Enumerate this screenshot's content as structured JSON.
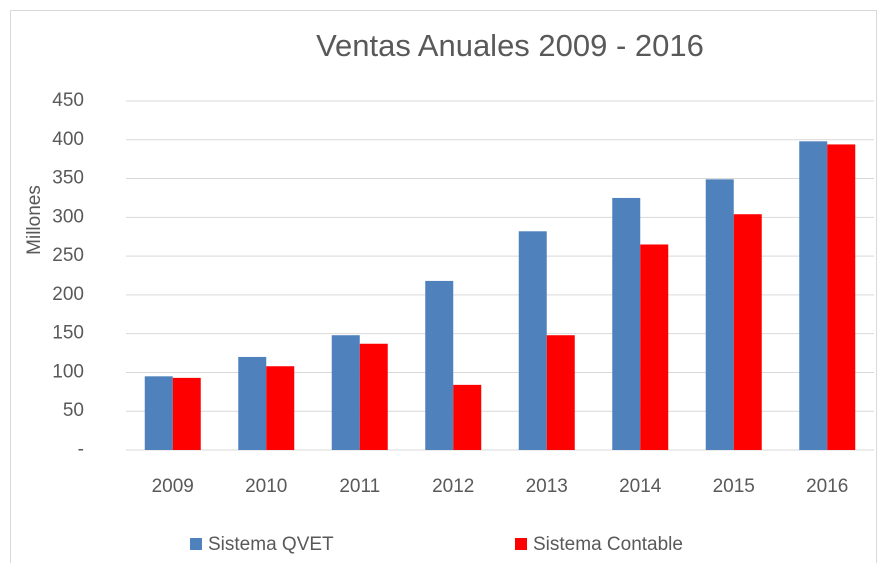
{
  "chart_data": {
    "type": "bar",
    "title": "Ventas Anuales 2009 - 2016",
    "y_label": "Millones",
    "categories": [
      "2009",
      "2010",
      "2011",
      "2012",
      "2013",
      "2014",
      "2015",
      "2016"
    ],
    "series": [
      {
        "name": "Sistema QVET",
        "color": "#4f81bd",
        "values": [
          95,
          120,
          148,
          218,
          282,
          325,
          349,
          398
        ]
      },
      {
        "name": "Sistema Contable",
        "color": "#ff0000",
        "values": [
          93,
          108,
          137,
          84,
          148,
          265,
          304,
          394
        ]
      }
    ],
    "ylim": [
      0,
      450
    ],
    "yticks": [
      {
        "value": 0,
        "label": "-"
      },
      50,
      100,
      150,
      200,
      250,
      300,
      350,
      400,
      450
    ],
    "grid": true,
    "legend": "bottom"
  }
}
